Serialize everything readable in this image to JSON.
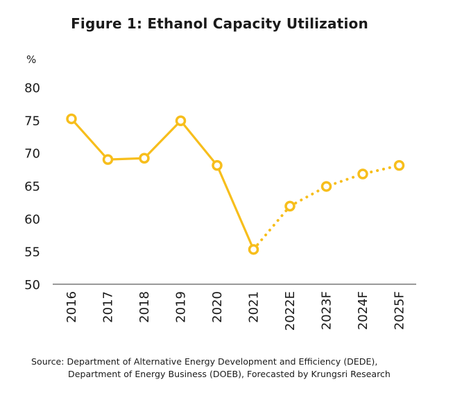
{
  "chart_data": {
    "type": "line",
    "title": "Figure 1: Ethanol Capacity Utilization",
    "ylabel": "%",
    "xlabel": "",
    "ylim": [
      50,
      80
    ],
    "yticks": [
      50,
      55,
      60,
      65,
      70,
      75,
      80
    ],
    "categories": [
      "2016",
      "2017",
      "2018",
      "2019",
      "2020",
      "2021",
      "2022E",
      "2023F",
      "2024F",
      "2025F"
    ],
    "values": [
      75.2,
      69.0,
      69.2,
      74.9,
      68.1,
      55.3,
      61.9,
      64.9,
      66.8,
      68.1
    ],
    "actual_through_index": 5,
    "line_style": {
      "actual": "solid",
      "forecast": "dotted"
    },
    "color": "#F7BE1C",
    "marker": "hollow-circle",
    "grid": false,
    "legend": "none"
  },
  "source": {
    "line1": "Source: Department of Alternative Energy Development and Efficiency (DEDE),",
    "line2": "Department of Energy Business (DOEB), Forecasted by Krungsri Research"
  }
}
